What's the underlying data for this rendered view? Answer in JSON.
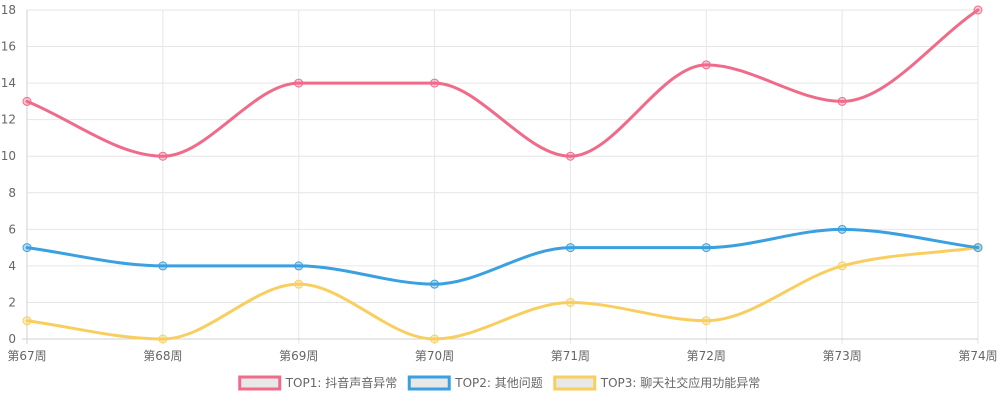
{
  "chart_data": {
    "type": "line",
    "categories": [
      "第67周",
      "第68周",
      "第69周",
      "第70周",
      "第71周",
      "第72周",
      "第73周",
      "第74周"
    ],
    "ylim": [
      0,
      18
    ],
    "yticks": [
      0,
      2,
      4,
      6,
      8,
      10,
      12,
      14,
      16,
      18
    ],
    "grid": true,
    "legend_position": "bottom",
    "series": [
      {
        "name": "TOP1: 抖音声音异常",
        "color": "#f06b8a",
        "values": [
          13,
          10,
          14,
          14,
          10,
          15,
          13,
          18
        ]
      },
      {
        "name": "TOP2: 其他问题",
        "color": "#3aa0e0",
        "values": [
          5,
          4,
          4,
          3,
          5,
          5,
          6,
          5
        ]
      },
      {
        "name": "TOP3: 聊天社交应用功能异常",
        "color": "#f8cf5f",
        "values": [
          1,
          0,
          3,
          0,
          2,
          1,
          4,
          5
        ]
      }
    ]
  }
}
